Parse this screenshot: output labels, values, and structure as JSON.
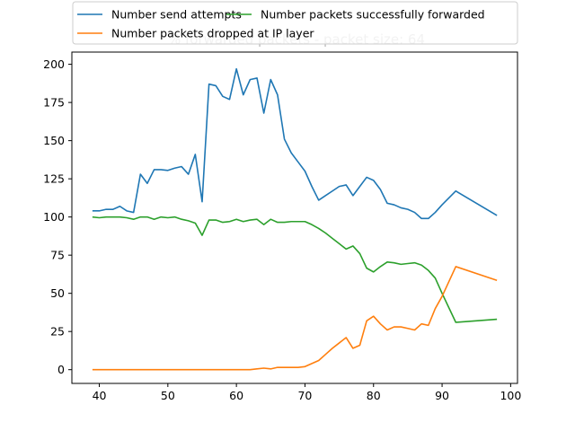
{
  "chart_data": {
    "type": "line",
    "title": "% forwarded packets - packet size: 64",
    "xlabel": "",
    "ylabel": "",
    "xlim": [
      36,
      101
    ],
    "ylim": [
      -9,
      208
    ],
    "xticks": [
      40,
      50,
      60,
      70,
      80,
      90,
      100
    ],
    "yticks": [
      0,
      25,
      50,
      75,
      100,
      125,
      150,
      175,
      200
    ],
    "grid": false,
    "legend_position": "top-center",
    "series": [
      {
        "name": "Number send attempts",
        "color": "#1f77b4",
        "x": [
          39,
          40,
          41,
          42,
          43,
          44,
          45,
          46,
          47,
          48,
          49,
          50,
          51,
          52,
          53,
          54,
          55,
          56,
          57,
          58,
          59,
          60,
          61,
          62,
          63,
          64,
          65,
          66,
          67,
          68,
          69,
          70,
          71,
          72,
          73,
          74,
          75,
          76,
          77,
          78,
          79,
          80,
          81,
          82,
          83,
          84,
          85,
          86,
          87,
          88,
          89,
          90,
          92,
          98
        ],
        "y": [
          104,
          104,
          105,
          105,
          107,
          104,
          103,
          128,
          122,
          131,
          131,
          130.5,
          132,
          133,
          128,
          141,
          110,
          187,
          186,
          179,
          177,
          197,
          180,
          190,
          191,
          168,
          190,
          180,
          151,
          142,
          136,
          130,
          120,
          111,
          114,
          117,
          120,
          121,
          114,
          120,
          126,
          124,
          118,
          109,
          108,
          106,
          105,
          103,
          99,
          99,
          103,
          108,
          117,
          101
        ]
      },
      {
        "name": "Number packets successfully forwarded",
        "color": "#2ca02c",
        "x": [
          39,
          40,
          41,
          42,
          43,
          44,
          45,
          46,
          47,
          48,
          49,
          50,
          51,
          52,
          53,
          54,
          55,
          56,
          57,
          58,
          59,
          60,
          61,
          62,
          63,
          64,
          65,
          66,
          67,
          68,
          69,
          70,
          71,
          72,
          73,
          74,
          75,
          76,
          77,
          78,
          79,
          80,
          81,
          82,
          83,
          84,
          85,
          86,
          87,
          88,
          89,
          90,
          92,
          98
        ],
        "y": [
          100,
          99.5,
          100,
          100,
          100,
          99.5,
          98.5,
          100,
          100,
          98.5,
          100,
          99.5,
          100,
          98.5,
          97.5,
          96,
          88,
          98,
          98,
          96.5,
          97,
          98.5,
          97,
          98,
          98.5,
          95,
          98.5,
          96.5,
          96.5,
          97,
          97,
          97,
          95,
          92.5,
          89.5,
          86,
          82.5,
          79,
          81,
          76,
          66.5,
          64,
          67.5,
          70.5,
          70,
          69,
          69.5,
          70,
          68.5,
          65,
          60,
          50,
          31,
          33
        ]
      },
      {
        "name": "Number packets dropped at IP layer",
        "color": "#ff7f0e",
        "x": [
          39,
          40,
          41,
          42,
          43,
          44,
          45,
          46,
          47,
          48,
          49,
          50,
          51,
          52,
          53,
          54,
          55,
          56,
          57,
          58,
          59,
          60,
          61,
          62,
          63,
          64,
          65,
          66,
          67,
          68,
          69,
          70,
          71,
          72,
          73,
          74,
          75,
          76,
          77,
          78,
          79,
          80,
          81,
          82,
          83,
          84,
          85,
          86,
          87,
          88,
          89,
          90,
          92,
          98
        ],
        "y": [
          0,
          0,
          0,
          0,
          0,
          0,
          0,
          0,
          0,
          0,
          0,
          0,
          0,
          0,
          0,
          0,
          0,
          0,
          0,
          0,
          0,
          0,
          0,
          0,
          0.5,
          1,
          0.5,
          1.5,
          1.5,
          1.5,
          1.5,
          2,
          4,
          6,
          10,
          14,
          17.5,
          21,
          14,
          16,
          32,
          35,
          30,
          26,
          28,
          28,
          27,
          26,
          30,
          29,
          40,
          48,
          67.5,
          58.5
        ]
      }
    ]
  }
}
